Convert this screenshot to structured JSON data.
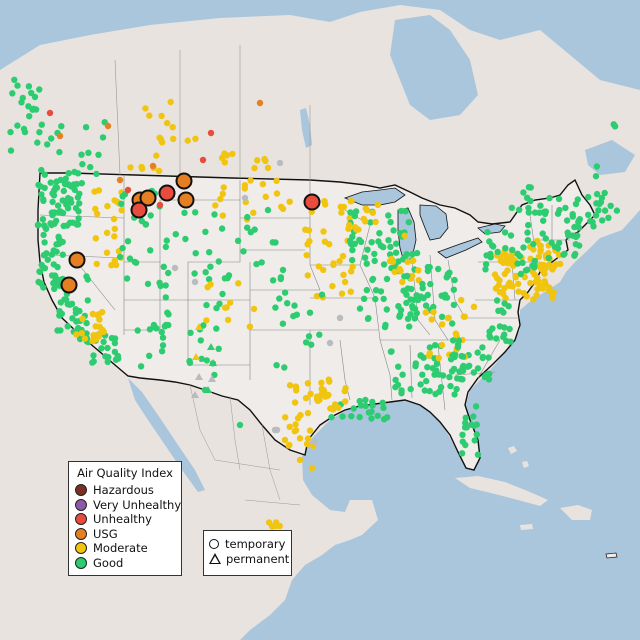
{
  "legend": {
    "title": "Air Quality Index",
    "categories": [
      {
        "label": "Hazardous",
        "color": "#7a2f22"
      },
      {
        "label": "Very Unhealthy",
        "color": "#8e59a6"
      },
      {
        "label": "Unhealthy",
        "color": "#e74c3c"
      },
      {
        "label": "USG",
        "color": "#e67e22"
      },
      {
        "label": "Moderate",
        "color": "#f1c40f"
      },
      {
        "label": "Good",
        "color": "#2ecc71"
      }
    ]
  },
  "type_legend": {
    "temporary": "temporary",
    "permanent": "permanent"
  },
  "colors": {
    "water": "#a9c6dd",
    "land": "#ede7e3",
    "land_usa": "#efece9",
    "no_data": "#b8bcc0"
  }
}
